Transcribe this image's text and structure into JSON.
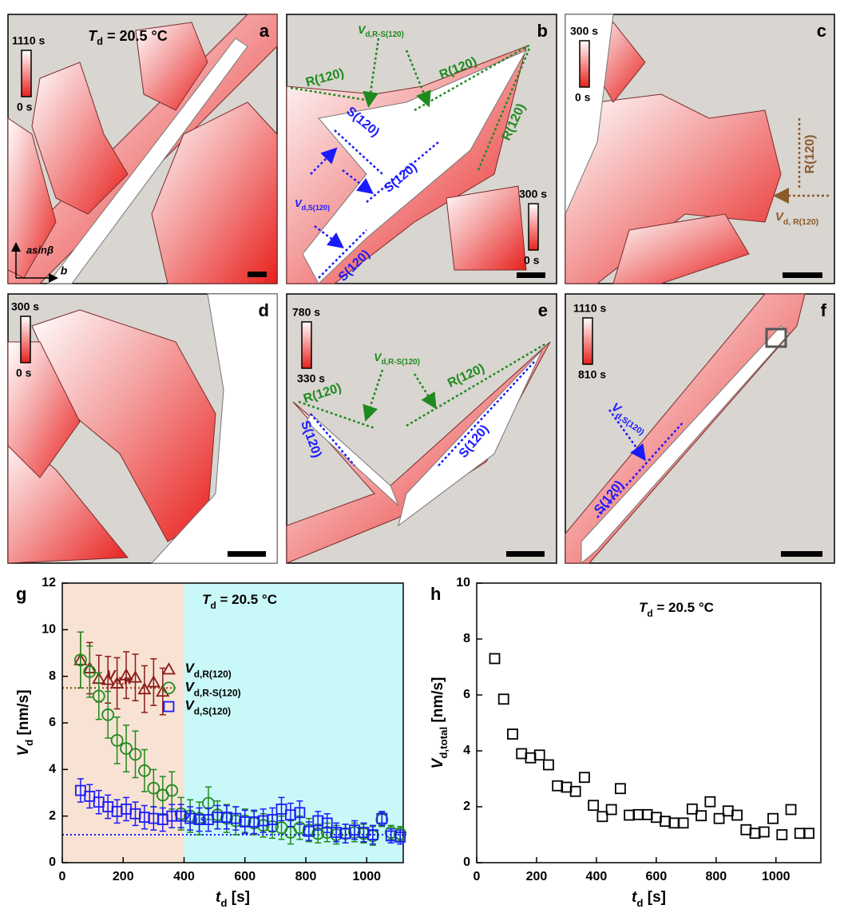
{
  "panels": [
    {
      "label": "a",
      "scale_max": "1110 s",
      "scale_min": "0 s",
      "annotations": [
        {
          "symbol": "T",
          "sub": "d",
          "rest": " = 20.5 °C"
        },
        "asinβ",
        "b"
      ]
    },
    {
      "label": "b",
      "scale_max": "300 s",
      "scale_min": "0 s",
      "annotations": [
        {
          "symbol": "V",
          "sub": "d,R-S(120)"
        },
        "R(120)",
        "R(120)",
        "R(120)",
        "S(120)",
        "S(120)",
        {
          "symbol": "V",
          "sub": "d,S(120)"
        },
        "S(120)"
      ]
    },
    {
      "label": "c",
      "scale_max": "300 s",
      "scale_min": "0 s",
      "annotations": [
        "R(120)",
        {
          "symbol": "V",
          "sub": "d, R(120)"
        }
      ]
    },
    {
      "label": "d",
      "scale_max": "300 s",
      "scale_min": "0 s",
      "annotations": []
    },
    {
      "label": "e",
      "scale_max": "780 s",
      "scale_min": "330 s",
      "annotations": [
        {
          "symbol": "V",
          "sub": "d,R-S(120)"
        },
        "R(120)",
        "R(120)",
        "S(120)",
        "S(120)"
      ]
    },
    {
      "label": "f",
      "scale_max": "1110 s",
      "scale_min": "810 s",
      "annotations": [
        {
          "symbol": "V",
          "sub": "d,S(120)"
        },
        "S(120)"
      ]
    }
  ],
  "chart_data": [
    {
      "type": "scatter",
      "panel_label": "g",
      "title": {
        "symbol": "T",
        "sub": "d",
        "rest": " = 20.5 °C"
      },
      "xlabel": {
        "symbol": "t",
        "sub": "d",
        "rest": " [s]"
      },
      "ylabel": {
        "symbol": "V",
        "sub": "d",
        "rest": " [nm/s]"
      },
      "xlim": [
        0,
        1120
      ],
      "ylim": [
        0,
        12
      ],
      "xticks": [
        0,
        200,
        400,
        600,
        800,
        1000
      ],
      "yticks": [
        0,
        2,
        4,
        6,
        8,
        10,
        12
      ],
      "regions": [
        {
          "from": 0,
          "to": 400,
          "color": "#f8e2d3"
        },
        {
          "from": 400,
          "to": 1120,
          "color": "#c9f8f8"
        }
      ],
      "reference_lines": [
        {
          "value": 7.5,
          "from": 0,
          "to": 380,
          "color": "#8b4513"
        },
        {
          "value": 1.2,
          "from": 0,
          "to": 1120,
          "color": "#1a1aff"
        }
      ],
      "annotations": [
        {
          "text": {
            "symbol": "V",
            "sub": "d,R"
          },
          "color": "#8b1a1a"
        },
        {
          "text": {
            "symbol": "V",
            "sub": "d,S"
          },
          "color": "#1a1aff"
        }
      ],
      "series": [
        {
          "name": {
            "symbol": "V",
            "sub": "d,R(120)"
          },
          "color": "#8b1a1a",
          "marker": "triangle",
          "x": [
            60,
            90,
            120,
            150,
            180,
            210,
            240,
            270,
            300,
            330
          ],
          "values": [
            8.7,
            8.35,
            7.9,
            7.85,
            7.7,
            8.05,
            7.95,
            7.45,
            7.75,
            7.35
          ],
          "errors": [
            1.2,
            1.1,
            1.0,
            1.0,
            1.1,
            1.0,
            1.0,
            1.0,
            1.0,
            1.0
          ]
        },
        {
          "name": {
            "symbol": "V",
            "sub": "d,R-S(120)"
          },
          "color": "#1f8a1f",
          "marker": "circle",
          "x": [
            60,
            90,
            120,
            150,
            180,
            210,
            240,
            270,
            300,
            330,
            360,
            390,
            420,
            450,
            480,
            510,
            540,
            570,
            600,
            630,
            660,
            690,
            720,
            750,
            780,
            810,
            840,
            870,
            900,
            930,
            960,
            990,
            1020,
            1050,
            1080,
            1110
          ],
          "values": [
            8.7,
            8.2,
            7.15,
            6.35,
            5.25,
            4.9,
            4.65,
            3.95,
            3.2,
            2.9,
            3.1,
            2.1,
            2.0,
            1.9,
            2.55,
            2.05,
            1.9,
            1.8,
            1.8,
            1.7,
            1.6,
            1.55,
            1.5,
            1.3,
            1.5,
            1.4,
            1.25,
            1.3,
            1.2,
            1.25,
            1.3,
            1.25,
            1.15,
            1.85,
            1.3,
            1.25
          ],
          "errors": [
            1.2,
            1.1,
            1.0,
            1.0,
            1.0,
            1.0,
            1.0,
            0.9,
            0.8,
            0.8,
            0.8,
            0.7,
            0.7,
            0.7,
            0.7,
            0.6,
            0.6,
            0.6,
            0.5,
            0.5,
            0.5,
            0.5,
            0.5,
            0.5,
            0.5,
            0.5,
            0.4,
            0.4,
            0.4,
            0.4,
            0.4,
            0.4,
            0.4,
            0.3,
            0.3,
            0.3
          ]
        },
        {
          "name": {
            "symbol": "V",
            "sub": "d,S(120)"
          },
          "color": "#1a1aff",
          "marker": "square",
          "x": [
            60,
            90,
            120,
            150,
            180,
            210,
            240,
            270,
            300,
            330,
            360,
            390,
            420,
            450,
            480,
            510,
            540,
            570,
            600,
            630,
            660,
            690,
            720,
            750,
            780,
            810,
            840,
            870,
            900,
            930,
            960,
            990,
            1020,
            1050,
            1080,
            1110
          ],
          "values": [
            3.1,
            2.85,
            2.6,
            2.4,
            2.2,
            2.3,
            2.1,
            1.95,
            1.9,
            1.85,
            2.0,
            2.0,
            1.9,
            1.85,
            1.85,
            1.95,
            1.95,
            1.9,
            1.75,
            1.75,
            1.8,
            1.85,
            2.3,
            2.05,
            2.15,
            1.35,
            1.8,
            1.7,
            1.3,
            1.25,
            1.4,
            1.3,
            1.2,
            1.9,
            1.15,
            1.1
          ],
          "errors": [
            0.5,
            0.5,
            0.5,
            0.5,
            0.5,
            0.5,
            0.5,
            0.5,
            0.5,
            0.5,
            0.5,
            0.5,
            0.5,
            0.5,
            0.5,
            0.5,
            0.5,
            0.5,
            0.5,
            0.5,
            0.5,
            0.5,
            0.5,
            0.5,
            0.5,
            0.4,
            0.4,
            0.4,
            0.4,
            0.4,
            0.4,
            0.4,
            0.4,
            0.3,
            0.3,
            0.3
          ]
        }
      ]
    },
    {
      "type": "scatter",
      "panel_label": "h",
      "title": {
        "symbol": "T",
        "sub": "d",
        "rest": " = 20.5 °C"
      },
      "xlabel": {
        "symbol": "t",
        "sub": "d",
        "rest": " [s]"
      },
      "ylabel": {
        "symbol": "V",
        "sub": "d,total",
        "rest": " [nm/s]"
      },
      "xlim": [
        0,
        1150
      ],
      "ylim": [
        0,
        10
      ],
      "xticks": [
        0,
        200,
        400,
        600,
        800,
        1000
      ],
      "yticks": [
        0,
        2,
        4,
        6,
        8,
        10
      ],
      "series": [
        {
          "color": "#000000",
          "marker": "square",
          "x": [
            60,
            90,
            120,
            150,
            180,
            210,
            240,
            270,
            300,
            330,
            360,
            390,
            420,
            450,
            480,
            510,
            540,
            570,
            600,
            630,
            660,
            690,
            720,
            750,
            780,
            810,
            840,
            870,
            900,
            930,
            960,
            990,
            1020,
            1050,
            1080,
            1110
          ],
          "values": [
            7.3,
            5.85,
            4.6,
            3.9,
            3.75,
            3.85,
            3.5,
            2.75,
            2.7,
            2.55,
            3.05,
            2.05,
            1.65,
            1.9,
            2.65,
            1.7,
            1.72,
            1.72,
            1.62,
            1.48,
            1.42,
            1.42,
            1.92,
            1.68,
            2.18,
            1.58,
            1.85,
            1.7,
            1.18,
            1.05,
            1.1,
            1.58,
            1.0,
            1.9,
            1.05,
            1.05
          ]
        }
      ]
    }
  ]
}
